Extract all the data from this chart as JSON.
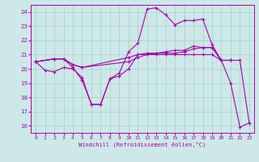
{
  "title": "",
  "xlabel": "Windchill (Refroidissement éolien,°C)",
  "bg_color": "#cce8e8",
  "grid_color": "#aacccc",
  "line_color": "#aa00aa",
  "xlim": [
    -0.5,
    23.5
  ],
  "ylim": [
    15.5,
    24.5
  ],
  "yticks": [
    16,
    17,
    18,
    19,
    20,
    21,
    22,
    23,
    24
  ],
  "xticks": [
    0,
    1,
    2,
    3,
    4,
    5,
    6,
    7,
    8,
    9,
    10,
    11,
    12,
    13,
    14,
    15,
    16,
    17,
    18,
    19,
    20,
    21,
    22,
    23
  ],
  "series": [
    {
      "x": [
        0,
        1,
        2,
        3,
        4,
        5,
        6,
        7,
        8,
        9,
        10,
        11,
        12,
        13,
        14,
        15,
        16,
        17,
        18,
        19,
        20,
        21,
        22,
        23
      ],
      "y": [
        20.5,
        19.9,
        19.8,
        20.1,
        20.0,
        19.4,
        17.5,
        17.5,
        19.3,
        19.5,
        20.0,
        21.0,
        21.0,
        21.0,
        21.0,
        21.0,
        21.0,
        21.0,
        21.0,
        21.0,
        20.6,
        19.0,
        15.9,
        16.2
      ]
    },
    {
      "x": [
        0,
        2,
        3,
        4,
        5,
        6,
        7,
        8,
        9,
        10,
        11,
        12,
        13,
        14,
        15,
        16,
        17,
        18,
        19,
        20,
        21,
        22,
        23
      ],
      "y": [
        20.5,
        20.7,
        20.7,
        20.1,
        19.2,
        17.5,
        17.5,
        19.3,
        19.7,
        21.2,
        21.8,
        24.2,
        24.3,
        23.8,
        23.1,
        23.4,
        23.4,
        23.5,
        21.7,
        20.6,
        20.6,
        20.6,
        16.2
      ]
    },
    {
      "x": [
        0,
        2,
        3,
        4,
        5,
        10,
        11,
        12,
        13,
        14,
        15,
        16,
        17,
        18,
        19,
        20,
        21
      ],
      "y": [
        20.5,
        20.7,
        20.7,
        20.3,
        20.1,
        20.5,
        20.8,
        21.0,
        21.1,
        21.2,
        21.3,
        21.3,
        21.6,
        21.5,
        21.5,
        20.6,
        20.6
      ]
    },
    {
      "x": [
        0,
        2,
        3,
        4,
        5,
        10,
        11,
        12,
        13,
        14,
        15,
        16,
        17,
        18,
        19,
        20,
        21
      ],
      "y": [
        20.5,
        20.7,
        20.7,
        20.3,
        20.1,
        20.8,
        21.0,
        21.1,
        21.1,
        21.1,
        21.1,
        21.2,
        21.4,
        21.5,
        21.5,
        20.6,
        20.6
      ]
    }
  ]
}
